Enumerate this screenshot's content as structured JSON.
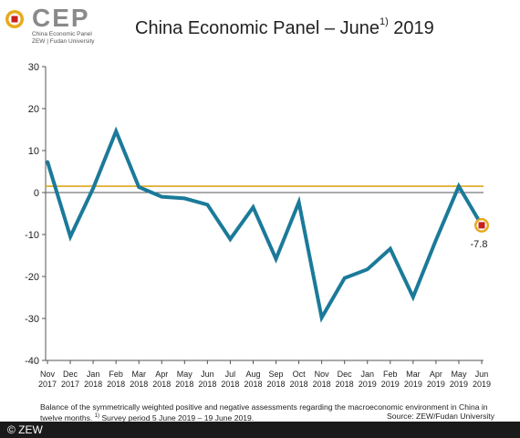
{
  "logo": {
    "text": "CEP",
    "line1": "China Economic Panel",
    "line2": "ZEW | Fudan University"
  },
  "header": {
    "title_main": "China Economic Panel – June",
    "title_sup": "1)",
    "title_year": " 2019"
  },
  "footer": {
    "note": "Balance of the symmetrically weighted positive and negative assessments regarding the macroeconomic environment in China in twelve months.",
    "survey_marker": "1)",
    "survey": "Survey period 5 June 2019 – 19 June 2019.",
    "source": "Source: ZEW/Fudan University",
    "copyright": "© ZEW"
  },
  "colors": {
    "line": "#1b7a99",
    "reference": "#e0a51e",
    "marker_outer": "#e8a91c",
    "marker_inner": "#c8201f"
  },
  "chart_data": {
    "type": "line",
    "categories": [
      [
        "Nov",
        "2017"
      ],
      [
        "Dec",
        "2017"
      ],
      [
        "Jan",
        "2018"
      ],
      [
        "Feb",
        "2018"
      ],
      [
        "Mar",
        "2018"
      ],
      [
        "Apr",
        "2018"
      ],
      [
        "May",
        "2018"
      ],
      [
        "Jun",
        "2018"
      ],
      [
        "Jul",
        "2018"
      ],
      [
        "Aug",
        "2018"
      ],
      [
        "Sep",
        "2018"
      ],
      [
        "Oct",
        "2018"
      ],
      [
        "Nov",
        "2018"
      ],
      [
        "Dec",
        "2018"
      ],
      [
        "Jan",
        "2019"
      ],
      [
        "Feb",
        "2019"
      ],
      [
        "Mar",
        "2019"
      ],
      [
        "Apr",
        "2019"
      ],
      [
        "May",
        "2019"
      ],
      [
        "Jun",
        "2019"
      ]
    ],
    "series": [
      {
        "values": [
          7.4,
          -10.5,
          1.0,
          14.6,
          1.3,
          -1.0,
          -1.4,
          -2.9,
          -11.1,
          -3.5,
          -15.8,
          -2.3,
          -29.8,
          -20.4,
          -18.3,
          -13.4,
          -24.9,
          -11.3,
          1.5,
          -7.8
        ]
      }
    ],
    "reference_line": 1.5,
    "last_value_label": "-7.8",
    "ylim": [
      -40,
      30
    ],
    "yticks": [
      30,
      20,
      10,
      0,
      -10,
      -20,
      -30,
      -40
    ],
    "grid": false
  }
}
